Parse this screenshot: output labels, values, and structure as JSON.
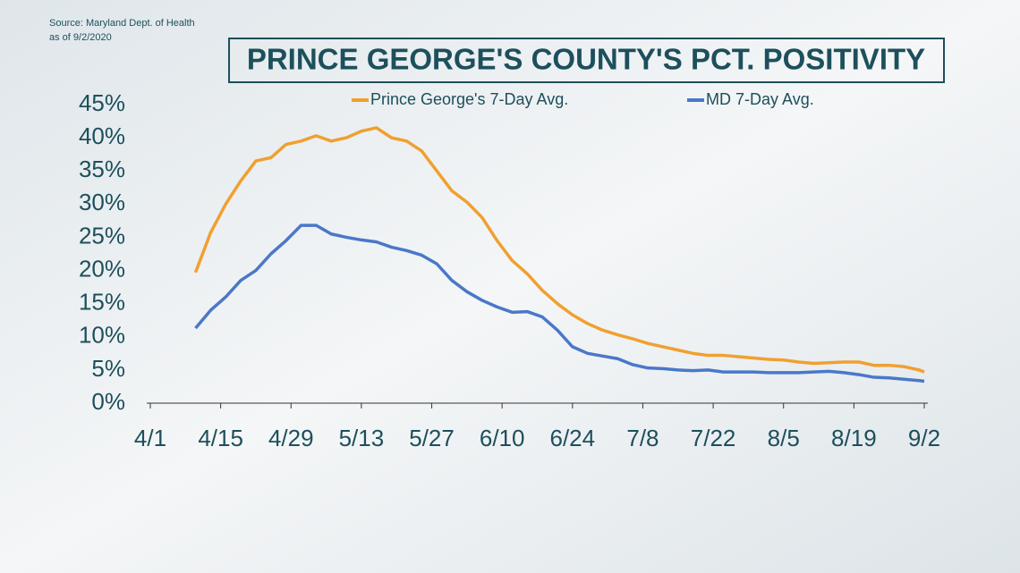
{
  "source": [
    "Source: Maryland Dept. of Health",
    "as of 9/2/2020"
  ],
  "chart_data": {
    "type": "line",
    "title": "PRINCE GEORGE'S COUNTY'S PCT. POSITIVITY",
    "x": [
      9,
      12,
      15,
      18,
      21,
      24,
      27,
      30,
      33,
      36,
      39,
      42,
      45,
      48,
      51,
      54,
      57,
      60,
      63,
      66,
      69,
      72,
      75,
      78,
      81,
      84,
      87,
      90,
      93,
      96,
      99,
      102,
      105,
      108,
      111,
      114,
      117,
      120,
      123,
      126,
      129,
      132,
      135,
      138,
      141,
      144,
      147,
      150,
      153,
      154
    ],
    "series": [
      {
        "name": "Prince George's 7-Day Avg.",
        "color": "#f0a030",
        "values": [
          19.7,
          25.7,
          30,
          33.5,
          36.5,
          37,
          39,
          39.5,
          40.3,
          39.5,
          40,
          41,
          41.5,
          40,
          39.5,
          38,
          35,
          32,
          30.3,
          28,
          24.5,
          21.5,
          19.5,
          17,
          15,
          13.3,
          12,
          11,
          10.3,
          9.7,
          9,
          8.5,
          8,
          7.5,
          7.2,
          7.2,
          7,
          6.8,
          6.6,
          6.5,
          6.2,
          6,
          6.1,
          6.2,
          6.2,
          5.7,
          5.7,
          5.5,
          5,
          4.7
        ]
      },
      {
        "name": "MD 7-Day Avg.",
        "color": "#4a78c8",
        "values": [
          11.3,
          14,
          16,
          18.5,
          20,
          22.5,
          24.5,
          26.8,
          26.8,
          25.5,
          25,
          24.6,
          24.3,
          23.5,
          23,
          22.3,
          21,
          18.5,
          16.8,
          15.5,
          14.5,
          13.7,
          13.8,
          13,
          11,
          8.5,
          7.5,
          7.1,
          6.7,
          5.8,
          5.3,
          5.2,
          5,
          4.9,
          5,
          4.7,
          4.7,
          4.7,
          4.6,
          4.6,
          4.6,
          4.7,
          4.8,
          4.6,
          4.3,
          3.9,
          3.8,
          3.6,
          3.4,
          3.3
        ]
      }
    ],
    "xlim": [
      0,
      154
    ],
    "xticks": [
      {
        "value": 0,
        "label": "4/1"
      },
      {
        "value": 14,
        "label": "4/15"
      },
      {
        "value": 28,
        "label": "4/29"
      },
      {
        "value": 42,
        "label": "5/13"
      },
      {
        "value": 56,
        "label": "5/27"
      },
      {
        "value": 70,
        "label": "6/10"
      },
      {
        "value": 84,
        "label": "6/24"
      },
      {
        "value": 98,
        "label": "7/8"
      },
      {
        "value": 112,
        "label": "7/22"
      },
      {
        "value": 126,
        "label": "8/5"
      },
      {
        "value": 140,
        "label": "8/19"
      },
      {
        "value": 154,
        "label": "9/2"
      }
    ],
    "ylim": [
      0,
      45
    ],
    "yticks": [
      {
        "value": 0,
        "label": "0%"
      },
      {
        "value": 5,
        "label": "5%"
      },
      {
        "value": 10,
        "label": "10%"
      },
      {
        "value": 15,
        "label": "15%"
      },
      {
        "value": 20,
        "label": "20%"
      },
      {
        "value": 25,
        "label": "25%"
      },
      {
        "value": 30,
        "label": "30%"
      },
      {
        "value": 35,
        "label": "35%"
      },
      {
        "value": 40,
        "label": "40%"
      },
      {
        "value": 45,
        "label": "45%"
      }
    ]
  }
}
